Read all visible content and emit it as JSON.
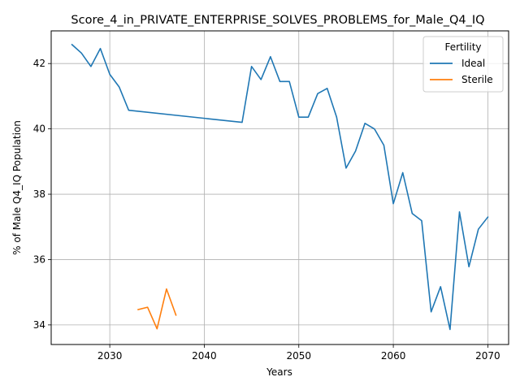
{
  "chart_data": {
    "type": "line",
    "title": "Score_4_in_PRIVATE_ENTERPRISE_SOLVES_PROBLEMS_for_Male_Q4_IQ",
    "xlabel": "Years",
    "ylabel": "% of Male Q4_IQ Population",
    "xlim": [
      2023.8,
      2072.2
    ],
    "ylim": [
      33.4,
      43.0
    ],
    "xticks": [
      2030,
      2040,
      2050,
      2060,
      2070
    ],
    "yticks": [
      34,
      36,
      38,
      40,
      42
    ],
    "grid": true,
    "legend": {
      "title": "Fertility",
      "placement": "top-right"
    },
    "series": [
      {
        "name": "Ideal",
        "color": "#1f77b4",
        "points": [
          [
            2026,
            42.58
          ],
          [
            2027,
            42.32
          ],
          [
            2028,
            41.91
          ],
          [
            2029,
            42.46
          ],
          [
            2030,
            41.67
          ],
          [
            2031,
            41.28
          ],
          [
            2032,
            40.57
          ],
          [
            2044,
            40.2
          ],
          [
            2045,
            41.91
          ],
          [
            2046,
            41.51
          ],
          [
            2047,
            42.21
          ],
          [
            2048,
            41.45
          ],
          [
            2049,
            41.45
          ],
          [
            2050,
            40.36
          ],
          [
            2051,
            40.36
          ],
          [
            2052,
            41.08
          ],
          [
            2053,
            41.24
          ],
          [
            2054,
            40.36
          ],
          [
            2055,
            38.8
          ],
          [
            2056,
            39.32
          ],
          [
            2057,
            40.17
          ],
          [
            2058,
            40.0
          ],
          [
            2059,
            39.5
          ],
          [
            2060,
            37.71
          ],
          [
            2061,
            38.66
          ],
          [
            2062,
            37.41
          ],
          [
            2063,
            37.19
          ],
          [
            2064,
            34.4
          ],
          [
            2065,
            35.17
          ],
          [
            2066,
            33.86
          ],
          [
            2067,
            37.46
          ],
          [
            2068,
            35.78
          ],
          [
            2069,
            36.93
          ],
          [
            2070,
            37.3
          ]
        ]
      },
      {
        "name": "Sterile",
        "color": "#ff7f0e",
        "points": [
          [
            2033,
            34.47
          ],
          [
            2034,
            34.54
          ],
          [
            2035,
            33.88
          ],
          [
            2036,
            35.1
          ],
          [
            2037,
            34.3
          ]
        ]
      }
    ]
  }
}
